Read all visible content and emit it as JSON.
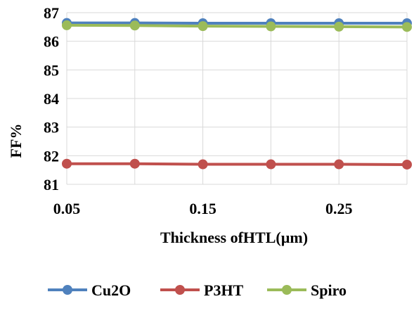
{
  "chart_data": {
    "type": "line",
    "title": "",
    "xlabel": "Thickness ofHTL(µm)",
    "ylabel": "FF%",
    "xlim": [
      0.05,
      0.3
    ],
    "ylim": [
      81,
      87
    ],
    "x_ticks": [
      0.05,
      0.15,
      0.25
    ],
    "x_tick_labels": [
      "0.05",
      "0.15",
      "0.25"
    ],
    "x_gridlines": [
      0.05,
      0.1,
      0.15,
      0.2,
      0.25,
      0.3
    ],
    "y_ticks": [
      81,
      82,
      83,
      84,
      85,
      86,
      87
    ],
    "y_tick_labels": [
      "81",
      "82",
      "83",
      "84",
      "85",
      "86",
      "87"
    ],
    "grid": true,
    "legend_position": "bottom",
    "x": [
      0.05,
      0.1,
      0.15,
      0.2,
      0.25,
      0.3
    ],
    "series": [
      {
        "name": "Cu2O",
        "color": "#4f81bd",
        "values": [
          86.64,
          86.64,
          86.63,
          86.63,
          86.63,
          86.63
        ]
      },
      {
        "name": "P3HT",
        "color": "#c0504d",
        "values": [
          81.72,
          81.72,
          81.7,
          81.7,
          81.7,
          81.69
        ]
      },
      {
        "name": "Spiro",
        "color": "#9bbb59",
        "values": [
          86.56,
          86.55,
          86.53,
          86.52,
          86.51,
          86.5
        ]
      }
    ]
  }
}
